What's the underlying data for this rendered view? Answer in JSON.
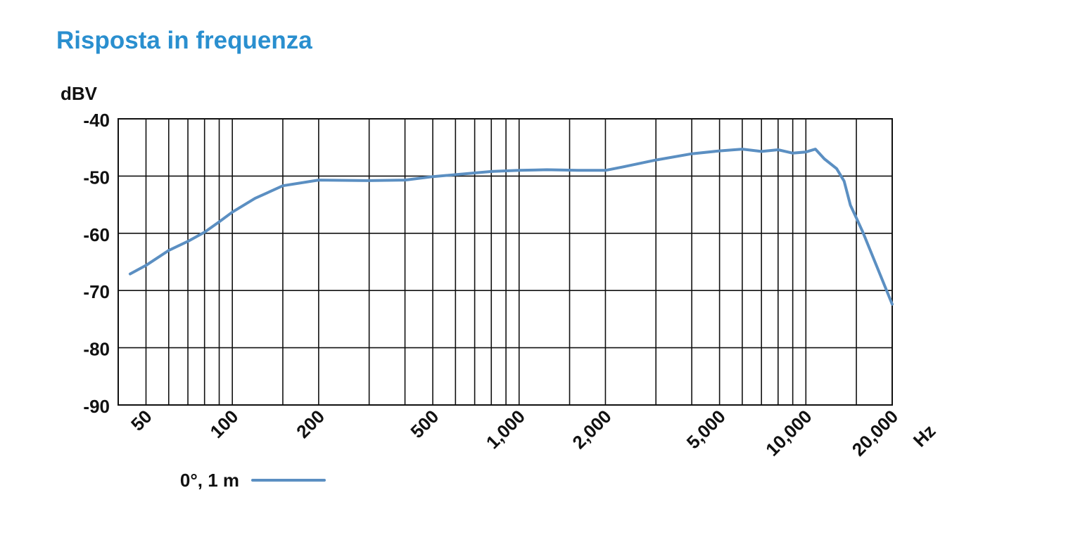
{
  "chart_data": {
    "type": "line",
    "title": "Risposta in frequenza",
    "y_label": "dBV",
    "x_label": "Hz",
    "log_x": true,
    "grid": true,
    "xlim": [
      40,
      20000
    ],
    "ylim": [
      -90,
      -40
    ],
    "xticks": [
      50,
      100,
      200,
      500,
      {
        "value": 1000,
        "label": "1,000"
      },
      {
        "value": 2000,
        "label": "2,000"
      },
      {
        "value": 5000,
        "label": "5,000"
      },
      {
        "value": 10000,
        "label": "10,000"
      },
      {
        "value": 20000,
        "label": "20,000"
      }
    ],
    "xgrid": [
      50,
      60,
      70,
      80,
      90,
      100,
      150,
      200,
      300,
      400,
      500,
      600,
      700,
      800,
      900,
      1000,
      1500,
      2000,
      3000,
      4000,
      5000,
      6000,
      7000,
      8000,
      9000,
      10000,
      15000,
      20000
    ],
    "yticks": [
      -40,
      -50,
      -60,
      -70,
      -80,
      -90
    ],
    "legend_position": "bottom-left",
    "x": [
      44,
      50,
      60,
      70,
      80,
      90,
      100,
      120,
      150,
      200,
      300,
      400,
      500,
      800,
      1000,
      1250,
      1600,
      2000,
      2300,
      3000,
      4000,
      5000,
      6000,
      7000,
      8000,
      9000,
      10000,
      10800,
      11600,
      12800,
      13600,
      14300,
      14800,
      15800,
      20000
    ],
    "series": [
      {
        "name": "0°, 1 m",
        "color": "#5b8fc2",
        "values": [
          -67.1,
          -65.6,
          -63,
          -61.4,
          -59.8,
          -58,
          -56.3,
          -53.9,
          -51.7,
          -50.7,
          -50.8,
          -50.7,
          -50.1,
          -49.2,
          -49,
          -48.9,
          -49,
          -49,
          -48.4,
          -47.2,
          -46.1,
          -45.6,
          -45.3,
          -45.7,
          -45.4,
          -46,
          -45.8,
          -45.3,
          -47,
          -48.7,
          -50.9,
          -55.1,
          -56.7,
          -59.8,
          -72.4
        ]
      }
    ]
  }
}
